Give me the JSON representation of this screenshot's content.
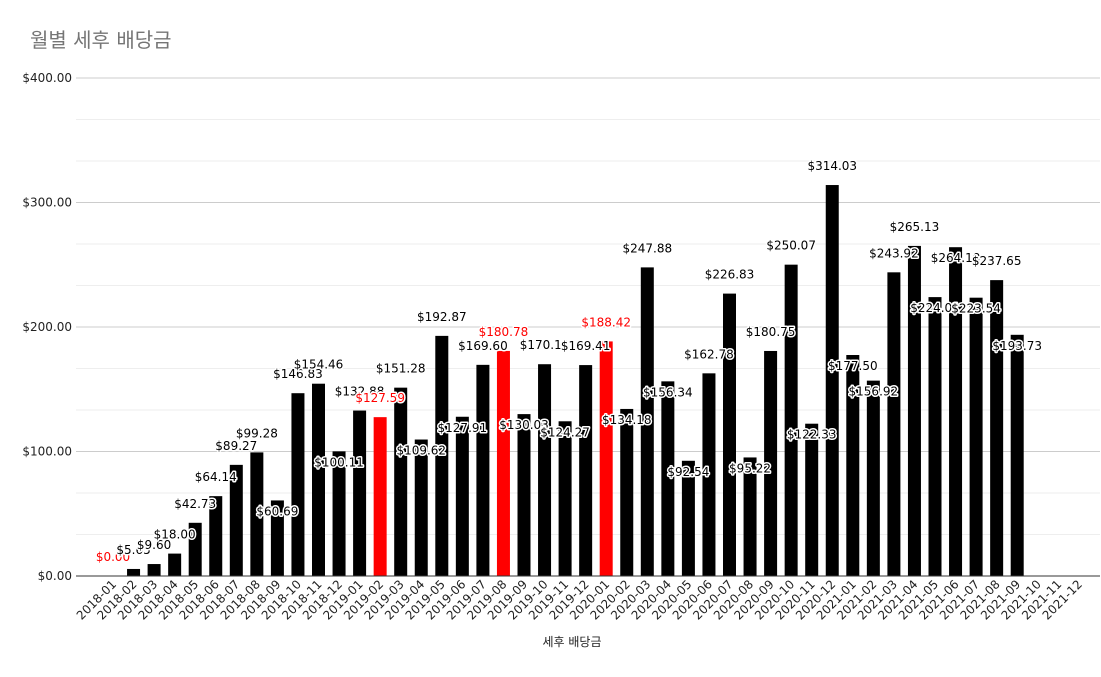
{
  "chart_data": {
    "type": "bar",
    "title": "월별 세후 배당금",
    "xlabel": "세후 배당금",
    "ylabel": "",
    "ylim": [
      0,
      400
    ],
    "yticks": [
      0,
      100,
      200,
      300,
      400
    ],
    "ytick_labels": [
      "$0.00",
      "$100.00",
      "$200.00",
      "$300.00",
      "$400.00"
    ],
    "grid": true,
    "legend": "none",
    "colors": {
      "default": "#000000",
      "highlight": "#ff0000",
      "grid": "#cccccc",
      "minor_grid": "#eeeeee"
    },
    "categories": [
      "2018-01",
      "2018-02",
      "2018-03",
      "2018-04",
      "2018-05",
      "2018-06",
      "2018-07",
      "2018-08",
      "2018-09",
      "2018-10",
      "2018-11",
      "2018-12",
      "2019-01",
      "2019-02",
      "2019-03",
      "2019-04",
      "2019-05",
      "2019-06",
      "2019-07",
      "2019-08",
      "2019-09",
      "2019-10",
      "2019-11",
      "2019-12",
      "2020-01",
      "2020-02",
      "2020-03",
      "2020-04",
      "2020-05",
      "2020-06",
      "2020-07",
      "2020-08",
      "2020-09",
      "2020-10",
      "2020-11",
      "2020-12",
      "2021-01",
      "2021-02",
      "2021-03",
      "2021-04",
      "2021-05",
      "2021-06",
      "2021-07",
      "2021-08",
      "2021-09",
      "2021-10",
      "2021-11",
      "2021-12"
    ],
    "values": [
      0,
      5.65,
      9.6,
      18,
      42.73,
      64.14,
      89.27,
      99.28,
      60.69,
      146.83,
      154.46,
      100.11,
      132.88,
      127.59,
      151.28,
      109.62,
      192.87,
      127.91,
      169.6,
      180.78,
      130.03,
      170.11,
      124.27,
      169.41,
      188.42,
      134.18,
      247.88,
      156.34,
      92.54,
      162.78,
      226.83,
      95.22,
      180.75,
      250.07,
      122.33,
      314.03,
      177.5,
      156.92,
      243.92,
      265.13,
      224.01,
      264.1,
      223.54,
      237.65,
      193.73,
      null,
      null,
      null
    ],
    "data_labels": [
      "$0.00",
      "$5.65",
      "$9.60",
      "$18.00",
      "$42.73",
      "$64.14",
      "$89.27",
      "$99.28",
      "$60.69",
      "$146.83",
      "$154.46",
      "$100.11",
      "$132.88",
      "$127.59",
      "$151.28",
      "$109.62",
      "$192.87",
      "$127.91",
      "$169.60",
      "$180.78",
      "$130.03",
      "$170.11",
      "$124.27",
      "$169.41",
      "$188.42",
      "$134.18",
      "$247.88",
      "$156.34",
      "$92.54",
      "$162.78",
      "$226.83",
      "$95.22",
      "$180.75",
      "$250.07",
      "$122.33",
      "$314.03",
      "$177.50",
      "$156.92",
      "$243.92",
      "$265.13",
      "$224.01",
      "$264.10",
      "$223.54",
      "$237.65",
      "$193.73",
      "",
      "",
      ""
    ],
    "label_position": [
      "above",
      "above",
      "above",
      "above",
      "above",
      "above",
      "above",
      "above",
      "inside",
      "above",
      "above",
      "inside",
      "above",
      "above",
      "above",
      "inside",
      "above",
      "inside",
      "above",
      "above",
      "inside",
      "above",
      "inside",
      "above",
      "above",
      "inside",
      "above",
      "inside",
      "inside",
      "above",
      "above",
      "inside",
      "above",
      "above",
      "inside",
      "above",
      "inside",
      "inside",
      "above",
      "above",
      "inside",
      "inside",
      "inside",
      "above",
      "inside",
      "none",
      "none",
      "none"
    ],
    "highlight": [
      true,
      false,
      false,
      false,
      false,
      false,
      false,
      false,
      false,
      false,
      false,
      false,
      false,
      true,
      false,
      false,
      false,
      false,
      false,
      true,
      false,
      false,
      false,
      false,
      true,
      false,
      false,
      false,
      false,
      false,
      false,
      false,
      false,
      false,
      false,
      false,
      false,
      false,
      false,
      false,
      false,
      false,
      false,
      false,
      false,
      false,
      false,
      false
    ]
  }
}
